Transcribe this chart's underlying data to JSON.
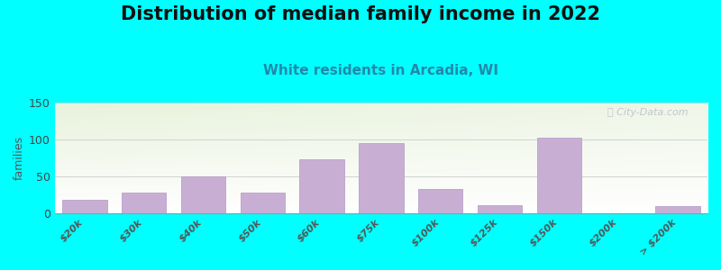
{
  "title": "Distribution of median family income in 2022",
  "subtitle": "White residents in Arcadia, WI",
  "ylabel": "families",
  "categories": [
    "$20k",
    "$30k",
    "$40k",
    "$50k",
    "$60k",
    "$75k",
    "$100k",
    "$125k",
    "$150k",
    "$200k",
    "> $200k"
  ],
  "values": [
    18,
    28,
    50,
    28,
    73,
    95,
    33,
    10,
    102,
    0,
    9
  ],
  "bar_color": "#c9aed4",
  "bar_edgecolor": "#b8a0cc",
  "background_outer": "#00ffff",
  "title_fontsize": 15,
  "subtitle_fontsize": 11,
  "subtitle_color": "#2288aa",
  "ylabel_fontsize": 9,
  "yticks": [
    0,
    50,
    100,
    150
  ],
  "ylim": [
    0,
    150
  ],
  "watermark_text": "ⓘ City-Data.com",
  "watermark_color": "#b8bec8",
  "grid_color": "#cccccc",
  "tick_fontsize": 8
}
